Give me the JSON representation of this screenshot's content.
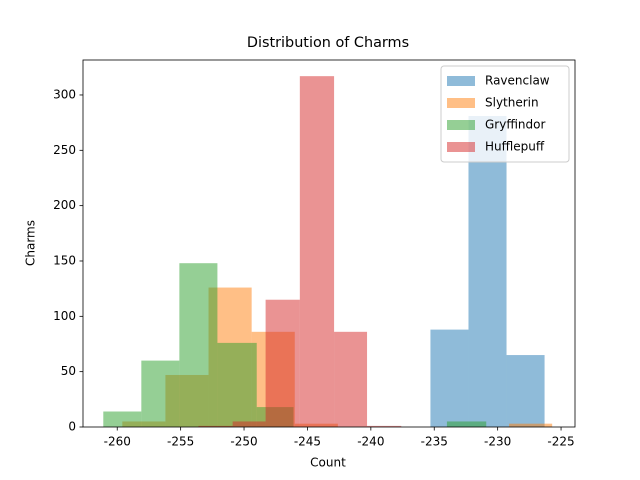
{
  "chart_data": {
    "type": "histogram",
    "title": "Distribution of Charms",
    "x_label": "Count",
    "y_label": "Charms",
    "xlim": [
      -262.7,
      -223.9
    ],
    "ylim": [
      0,
      331.6
    ],
    "xticks": [
      -260,
      -255,
      -250,
      -245,
      -240,
      -235,
      -230,
      -225
    ],
    "yticks": [
      0,
      50,
      100,
      150,
      200,
      250,
      300
    ],
    "legend": "upper right",
    "alpha": 0.5,
    "series": [
      {
        "name": "Ravenclaw",
        "color": "#1f77b4",
        "bins": [
          -235.3,
          -232.3,
          -229.3,
          -226.3
        ],
        "values": [
          88,
          281,
          65
        ]
      },
      {
        "name": "Slytherin",
        "color": "#ff7f0e",
        "bins": [
          -259.6,
          -256.2,
          -252.8,
          -249.4,
          -246.0,
          -242.6,
          -239.3,
          -235.9,
          -232.5,
          -229.1,
          -225.7
        ],
        "values": [
          5,
          47,
          126,
          86,
          3,
          0,
          0,
          0,
          0,
          3
        ]
      },
      {
        "name": "Gryffindor",
        "color": "#2ca02c",
        "bins": [
          -261.1,
          -258.1,
          -255.1,
          -252.1,
          -249.0,
          -246.1,
          -243.1,
          -240.0,
          -237.0,
          -234.0,
          -230.9
        ],
        "values": [
          14,
          60,
          148,
          76,
          18,
          0,
          0,
          0,
          0,
          5
        ]
      },
      {
        "name": "Hufflepuff",
        "color": "#d62728",
        "bins": [
          -253.6,
          -250.9,
          -248.3,
          -245.6,
          -242.9,
          -240.3,
          -237.6
        ],
        "values": [
          1,
          5,
          115,
          317,
          86,
          1
        ]
      }
    ]
  }
}
